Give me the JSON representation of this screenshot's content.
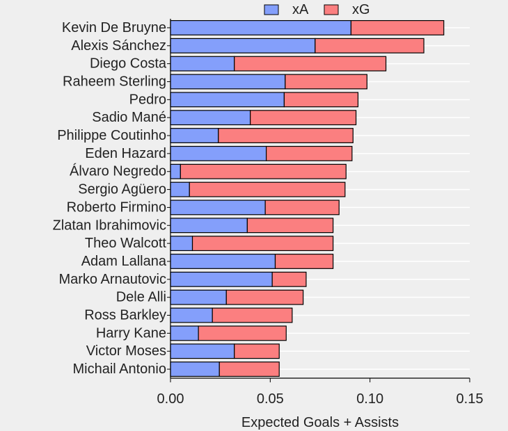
{
  "chart_data": {
    "type": "bar",
    "orientation": "horizontal",
    "stacked": true,
    "categories": [
      "Kevin De Bruyne",
      "Alexis Sánchez",
      "Diego Costa",
      "Raheem Sterling",
      "Pedro",
      "Sadio Mané",
      "Philippe Coutinho",
      "Eden Hazard",
      "Álvaro Negredo",
      "Sergio Agüero",
      "Roberto Firmino",
      "Zlatan Ibrahimovic",
      "Theo Walcott",
      "Adam Lallana",
      "Marko Arnautovic",
      "Dele Alli",
      "Ross Barkley",
      "Harry Kane",
      "Victor Moses",
      "Michail Antonio"
    ],
    "series": [
      {
        "name": "xA",
        "color": "#849ffb",
        "values": [
          0.0905,
          0.0725,
          0.032,
          0.0575,
          0.057,
          0.04,
          0.024,
          0.048,
          0.005,
          0.0095,
          0.0475,
          0.0385,
          0.011,
          0.0525,
          0.051,
          0.028,
          0.021,
          0.014,
          0.032,
          0.0245
        ]
      },
      {
        "name": "xG",
        "color": "#fb7f80",
        "values": [
          0.0465,
          0.0545,
          0.076,
          0.041,
          0.037,
          0.053,
          0.0675,
          0.043,
          0.083,
          0.078,
          0.037,
          0.043,
          0.0705,
          0.029,
          0.017,
          0.0385,
          0.04,
          0.044,
          0.0225,
          0.03
        ]
      }
    ],
    "xlabel": "Expected Goals + Assists",
    "ylabel": "",
    "xlim": [
      0,
      0.15
    ],
    "xticks": [
      "0.00",
      "0.05",
      "0.10",
      "0.15"
    ],
    "grid": "horizontal",
    "legend": "top-center",
    "edge_color": "#000000",
    "grid_color": "#ffffff",
    "background_color": "#efefef"
  }
}
